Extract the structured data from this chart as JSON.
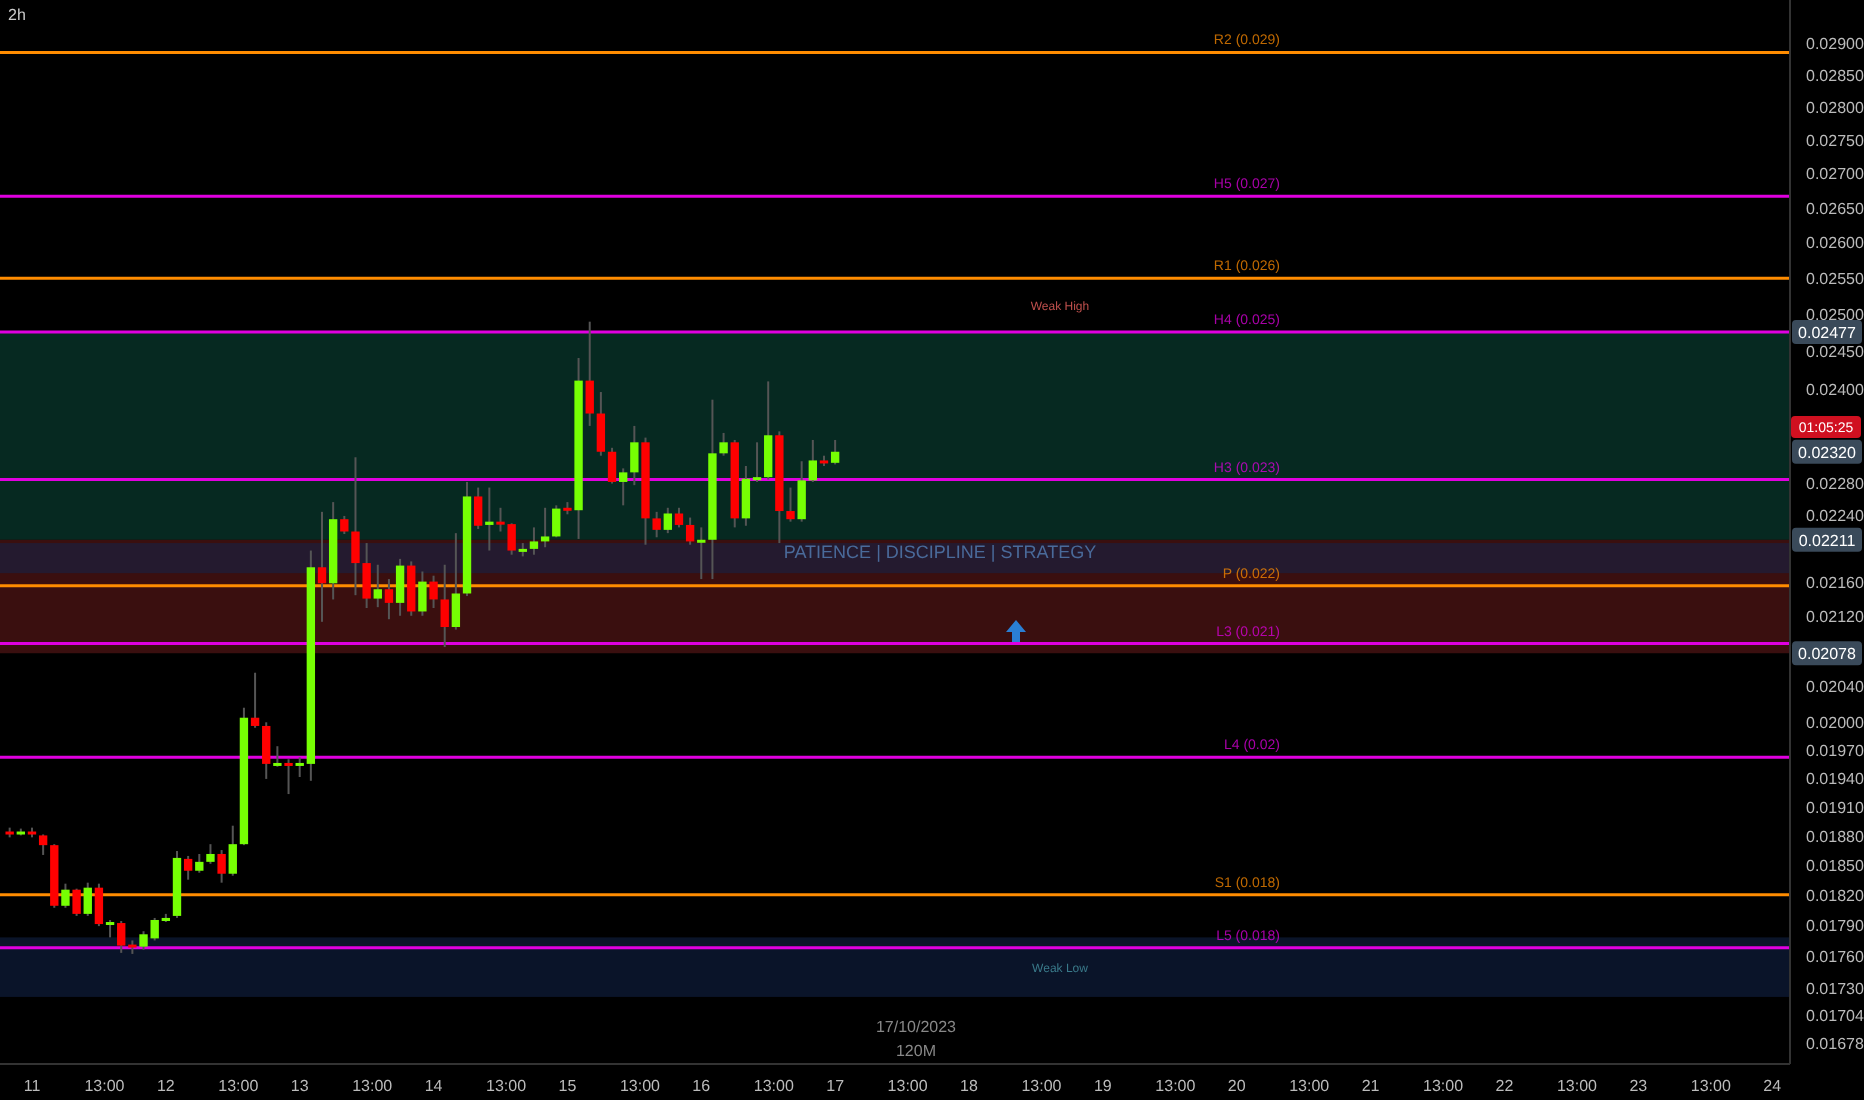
{
  "chart_data": {
    "type": "candlestick",
    "title": "2h",
    "x": [
      "2023-10-10T20:00",
      "2023-10-10T22:00",
      "2023-10-11T00:00",
      "2023-10-11T02:00",
      "2023-10-11T04:00",
      "2023-10-11T06:00",
      "2023-10-11T08:00",
      "2023-10-11T10:00",
      "2023-10-11T12:00",
      "2023-10-11T14:00",
      "2023-10-11T16:00",
      "2023-10-11T18:00",
      "2023-10-11T20:00",
      "2023-10-11T22:00",
      "2023-10-12T00:00",
      "2023-10-12T02:00",
      "2023-10-12T04:00",
      "2023-10-12T06:00",
      "2023-10-12T08:00",
      "2023-10-12T10:00",
      "2023-10-12T12:00",
      "2023-10-12T14:00",
      "2023-10-12T16:00",
      "2023-10-12T18:00",
      "2023-10-12T20:00",
      "2023-10-12T22:00",
      "2023-10-13T00:00",
      "2023-10-13T02:00",
      "2023-10-13T04:00",
      "2023-10-13T06:00",
      "2023-10-13T08:00",
      "2023-10-13T10:00",
      "2023-10-13T12:00",
      "2023-10-13T14:00",
      "2023-10-13T16:00",
      "2023-10-13T18:00",
      "2023-10-13T20:00",
      "2023-10-13T22:00",
      "2023-10-14T00:00",
      "2023-10-14T02:00",
      "2023-10-14T04:00",
      "2023-10-14T06:00",
      "2023-10-14T08:00",
      "2023-10-14T10:00",
      "2023-10-14T12:00",
      "2023-10-14T14:00",
      "2023-10-14T16:00",
      "2023-10-14T18:00",
      "2023-10-14T20:00",
      "2023-10-14T22:00",
      "2023-10-15T00:00",
      "2023-10-15T02:00",
      "2023-10-15T04:00",
      "2023-10-15T06:00",
      "2023-10-15T08:00",
      "2023-10-15T10:00",
      "2023-10-15T12:00",
      "2023-10-15T14:00",
      "2023-10-15T16:00",
      "2023-10-15T18:00",
      "2023-10-15T20:00",
      "2023-10-15T22:00",
      "2023-10-16T00:00",
      "2023-10-16T02:00",
      "2023-10-16T04:00",
      "2023-10-16T06:00",
      "2023-10-16T08:00",
      "2023-10-16T10:00",
      "2023-10-16T12:00",
      "2023-10-16T14:00",
      "2023-10-16T16:00",
      "2023-10-16T18:00",
      "2023-10-16T20:00",
      "2023-10-16T22:00",
      "2023-10-17T00:00"
    ],
    "ohlc": [
      [
        0.01885,
        0.01889,
        0.01879,
        0.01883
      ],
      [
        0.01883,
        0.01888,
        0.01881,
        0.01885
      ],
      [
        0.01885,
        0.01889,
        0.01879,
        0.01883
      ],
      [
        0.01881,
        0.01882,
        0.01861,
        0.01871
      ],
      [
        0.01871,
        0.01872,
        0.01808,
        0.0181
      ],
      [
        0.0181,
        0.01832,
        0.01808,
        0.01826
      ],
      [
        0.01826,
        0.01827,
        0.018,
        0.01802
      ],
      [
        0.01802,
        0.01833,
        0.018,
        0.01828
      ],
      [
        0.01828,
        0.01832,
        0.0179,
        0.01792
      ],
      [
        0.01792,
        0.01796,
        0.01779,
        0.01794
      ],
      [
        0.01793,
        0.01795,
        0.01764,
        0.01771
      ],
      [
        0.01772,
        0.01776,
        0.01763,
        0.0177
      ],
      [
        0.0177,
        0.01785,
        0.01767,
        0.01782
      ],
      [
        0.01778,
        0.01798,
        0.01776,
        0.01796
      ],
      [
        0.01795,
        0.01802,
        0.01794,
        0.01798
      ],
      [
        0.018,
        0.01865,
        0.01798,
        0.01858
      ],
      [
        0.01857,
        0.0186,
        0.01836,
        0.01845
      ],
      [
        0.01845,
        0.01862,
        0.01843,
        0.01854
      ],
      [
        0.01854,
        0.01872,
        0.01852,
        0.01862
      ],
      [
        0.01862,
        0.01866,
        0.01833,
        0.01842
      ],
      [
        0.01842,
        0.01891,
        0.0184,
        0.01872
      ],
      [
        0.01872,
        0.02017,
        0.01871,
        0.02006
      ],
      [
        0.02006,
        0.02056,
        0.01995,
        0.01997
      ],
      [
        0.01997,
        0.02001,
        0.0194,
        0.01956
      ],
      [
        0.01955,
        0.01975,
        0.01953,
        0.01957
      ],
      [
        0.01957,
        0.01961,
        0.01924,
        0.01955
      ],
      [
        0.01955,
        0.01963,
        0.01942,
        0.01957
      ],
      [
        0.01956,
        0.02198,
        0.01938,
        0.02178
      ],
      [
        0.02178,
        0.02245,
        0.02114,
        0.02159
      ],
      [
        0.02159,
        0.02257,
        0.0214,
        0.02236
      ],
      [
        0.02236,
        0.0224,
        0.02218,
        0.02221
      ],
      [
        0.02221,
        0.02313,
        0.02145,
        0.02183
      ],
      [
        0.02183,
        0.02207,
        0.0213,
        0.02141
      ],
      [
        0.02141,
        0.02181,
        0.02131,
        0.02152
      ],
      [
        0.02152,
        0.02164,
        0.02117,
        0.02136
      ],
      [
        0.02136,
        0.02188,
        0.02121,
        0.0218
      ],
      [
        0.0218,
        0.02185,
        0.02121,
        0.02126
      ],
      [
        0.02126,
        0.02173,
        0.02121,
        0.02161
      ],
      [
        0.02161,
        0.02168,
        0.0213,
        0.0214
      ],
      [
        0.0214,
        0.02181,
        0.02085,
        0.02108
      ],
      [
        0.02108,
        0.02219,
        0.02105,
        0.02147
      ],
      [
        0.02147,
        0.02282,
        0.02144,
        0.02264
      ],
      [
        0.02264,
        0.02275,
        0.02224,
        0.02228
      ],
      [
        0.02229,
        0.02275,
        0.02198,
        0.02233
      ],
      [
        0.02233,
        0.0225,
        0.02221,
        0.0223
      ],
      [
        0.0223,
        0.02231,
        0.02193,
        0.02198
      ],
      [
        0.02198,
        0.02207,
        0.02191,
        0.022
      ],
      [
        0.022,
        0.02226,
        0.02193,
        0.02209
      ],
      [
        0.02209,
        0.0225,
        0.02202,
        0.02215
      ],
      [
        0.02215,
        0.02253,
        0.02214,
        0.02249
      ],
      [
        0.0225,
        0.02257,
        0.02242,
        0.02247
      ],
      [
        0.02247,
        0.02442,
        0.02212,
        0.02412
      ],
      [
        0.02412,
        0.02491,
        0.02353,
        0.02369
      ],
      [
        0.02369,
        0.02397,
        0.02315,
        0.0232
      ],
      [
        0.0232,
        0.02325,
        0.0228,
        0.02282
      ],
      [
        0.02282,
        0.02299,
        0.02253,
        0.02294
      ],
      [
        0.02294,
        0.02353,
        0.02278,
        0.02332
      ],
      [
        0.02332,
        0.02338,
        0.02205,
        0.02237
      ],
      [
        0.02237,
        0.02245,
        0.02214,
        0.02223
      ],
      [
        0.02223,
        0.0225,
        0.02219,
        0.02243
      ],
      [
        0.02243,
        0.0225,
        0.02226,
        0.02229
      ],
      [
        0.02229,
        0.02238,
        0.02205,
        0.02209
      ],
      [
        0.02209,
        0.02226,
        0.02164,
        0.02211
      ],
      [
        0.02211,
        0.02387,
        0.02164,
        0.02318
      ],
      [
        0.02318,
        0.02344,
        0.02315,
        0.02332
      ],
      [
        0.02332,
        0.02335,
        0.02226,
        0.02237
      ],
      [
        0.02237,
        0.02302,
        0.02228,
        0.02286
      ],
      [
        0.02286,
        0.02332,
        0.02282,
        0.02288
      ],
      [
        0.02288,
        0.02411,
        0.02285,
        0.02341
      ],
      [
        0.02341,
        0.02346,
        0.02207,
        0.02246
      ],
      [
        0.02246,
        0.02275,
        0.02233,
        0.02236
      ],
      [
        0.02236,
        0.02308,
        0.02233,
        0.02284
      ],
      [
        0.02284,
        0.02335,
        0.02282,
        0.02309
      ],
      [
        0.02309,
        0.02315,
        0.02302,
        0.02306
      ],
      [
        0.02306,
        0.02335,
        0.02304,
        0.0232
      ]
    ],
    "colors": [
      "#ff0000",
      "#76ff03",
      "#ff0000",
      "#ff0000",
      "#ff0000",
      "#76ff03",
      "#ff0000",
      "#76ff03",
      "#ff0000",
      "#76ff03",
      "#ff0000",
      "#ff0000",
      "#76ff03",
      "#76ff03",
      "#76ff03",
      "#76ff03",
      "#ff0000",
      "#76ff03",
      "#76ff03",
      "#ff0000",
      "#76ff03",
      "#76ff03",
      "#ff0000",
      "#ff0000",
      "#76ff03",
      "#ff0000",
      "#76ff03",
      "#76ff03",
      "#ff0000",
      "#76ff03",
      "#ff0000",
      "#ff0000",
      "#ff0000",
      "#76ff03",
      "#ff0000",
      "#76ff03",
      "#ff0000",
      "#76ff03",
      "#ff0000",
      "#ff0000",
      "#76ff03",
      "#76ff03",
      "#ff0000",
      "#76ff03",
      "#ff0000",
      "#ff0000",
      "#76ff03",
      "#76ff03",
      "#76ff03",
      "#76ff03",
      "#ff0000",
      "#76ff03",
      "#ff0000",
      "#ff0000",
      "#ff0000",
      "#76ff03",
      "#76ff03",
      "#ff0000",
      "#ff0000",
      "#76ff03",
      "#ff0000",
      "#ff0000",
      "#76ff03",
      "#76ff03",
      "#76ff03",
      "#ff0000",
      "#76ff03",
      "#76ff03",
      "#76ff03",
      "#ff0000",
      "#ff0000",
      "#76ff03",
      "#76ff03",
      "#ff0000",
      "#76ff03"
    ],
    "log": true,
    "xlim": [
      "2023-10-10T18:16",
      "2023-10-24T03:12"
    ],
    "xticks": [
      {
        "value": "2023-10-11T00:00",
        "label": "11"
      },
      {
        "value": "2023-10-11T13:00",
        "label": "13:00"
      },
      {
        "value": "2023-10-12T00:00",
        "label": "12"
      },
      {
        "value": "2023-10-12T13:00",
        "label": "13:00"
      },
      {
        "value": "2023-10-13T00:00",
        "label": "13"
      },
      {
        "value": "2023-10-13T13:00",
        "label": "13:00"
      },
      {
        "value": "2023-10-14T00:00",
        "label": "14"
      },
      {
        "value": "2023-10-14T13:00",
        "label": "13:00"
      },
      {
        "value": "2023-10-15T00:00",
        "label": "15"
      },
      {
        "value": "2023-10-15T13:00",
        "label": "13:00"
      },
      {
        "value": "2023-10-16T00:00",
        "label": "16"
      },
      {
        "value": "2023-10-16T13:00",
        "label": "13:00"
      },
      {
        "value": "2023-10-17T00:00",
        "label": "17"
      },
      {
        "value": "2023-10-17T13:00",
        "label": "13:00"
      },
      {
        "value": "2023-10-18T00:00",
        "label": "18"
      },
      {
        "value": "2023-10-18T13:00",
        "label": "13:00"
      },
      {
        "value": "2023-10-19T00:00",
        "label": "19"
      },
      {
        "value": "2023-10-19T13:00",
        "label": "13:00"
      },
      {
        "value": "2023-10-20T00:00",
        "label": "20"
      },
      {
        "value": "2023-10-20T13:00",
        "label": "13:00"
      },
      {
        "value": "2023-10-21T00:00",
        "label": "21"
      },
      {
        "value": "2023-10-21T13:00",
        "label": "13:00"
      },
      {
        "value": "2023-10-22T00:00",
        "label": "22"
      },
      {
        "value": "2023-10-22T13:00",
        "label": "13:00"
      },
      {
        "value": "2023-10-23T00:00",
        "label": "23"
      },
      {
        "value": "2023-10-23T13:00",
        "label": "13:00"
      },
      {
        "value": "2023-10-24T00:00",
        "label": "24"
      }
    ],
    "ylim": [
      0.0166,
      0.0297
    ],
    "yticks": [
      {
        "value": 0.029,
        "label": "0.02900"
      },
      {
        "value": 0.0285,
        "label": "0.02850"
      },
      {
        "value": 0.028,
        "label": "0.02800"
      },
      {
        "value": 0.0275,
        "label": "0.02750"
      },
      {
        "value": 0.027,
        "label": "0.02700"
      },
      {
        "value": 0.0265,
        "label": "0.02650"
      },
      {
        "value": 0.026,
        "label": "0.02600"
      },
      {
        "value": 0.0255,
        "label": "0.02550"
      },
      {
        "value": 0.025,
        "label": "0.02500"
      },
      {
        "value": 0.0245,
        "label": "0.02450"
      },
      {
        "value": 0.024,
        "label": "0.02400"
      },
      {
        "value": 0.0228,
        "label": "0.02280"
      },
      {
        "value": 0.0224,
        "label": "0.02240"
      },
      {
        "value": 0.0216,
        "label": "0.02160"
      },
      {
        "value": 0.0212,
        "label": "0.02120"
      },
      {
        "value": 0.0204,
        "label": "0.02040"
      },
      {
        "value": 0.02,
        "label": "0.02000"
      },
      {
        "value": 0.0197,
        "label": "0.01970"
      },
      {
        "value": 0.0194,
        "label": "0.01940"
      },
      {
        "value": 0.0191,
        "label": "0.01910"
      },
      {
        "value": 0.0188,
        "label": "0.01880"
      },
      {
        "value": 0.0185,
        "label": "0.01850"
      },
      {
        "value": 0.0182,
        "label": "0.01820"
      },
      {
        "value": 0.0179,
        "label": "0.01790"
      },
      {
        "value": 0.0176,
        "label": "0.01760"
      },
      {
        "value": 0.0173,
        "label": "0.01730"
      },
      {
        "value": 0.01704,
        "label": "0.01704"
      },
      {
        "value": 0.01678,
        "label": "0.01678"
      }
    ],
    "ref_lines": [
      {
        "axis": "y",
        "value": 0.02886,
        "label": "R2 (0.029)",
        "color": "#ff8c00"
      },
      {
        "axis": "y",
        "value": 0.02668,
        "label": "H5 (0.027)",
        "color": "#e000e0"
      },
      {
        "axis": "y",
        "value": 0.02551,
        "label": "R1 (0.026)",
        "color": "#ff8c00"
      },
      {
        "axis": "y",
        "value": 0.02477,
        "label": "H4 (0.025)",
        "color": "#e000e0"
      },
      {
        "axis": "y",
        "value": 0.02285,
        "label": "H3 (0.023)",
        "color": "#e000e0"
      },
      {
        "axis": "y",
        "value": 0.02156,
        "label": "P (0.022)",
        "color": "#ff8c00"
      },
      {
        "axis": "y",
        "value": 0.02089,
        "label": "L3 (0.021)",
        "color": "#e000e0"
      },
      {
        "axis": "y",
        "value": 0.01963,
        "label": "L4 (0.02)",
        "color": "#e000e0"
      },
      {
        "axis": "y",
        "value": 0.01821,
        "label": "S1 (0.018)",
        "color": "#ff8c00"
      },
      {
        "axis": "y",
        "value": 0.01769,
        "label": "L5 (0.018)",
        "color": "#e000e0"
      }
    ],
    "bands": [
      {
        "axis": "y",
        "from": 0.02211,
        "to": 0.02477,
        "color": "#0b4a3c"
      },
      {
        "axis": "y",
        "from": 0.02078,
        "to": 0.02211,
        "color": "#6a1c1c"
      },
      {
        "axis": "y",
        "from": 0.02171,
        "to": 0.02207,
        "color": "#13254a"
      },
      {
        "axis": "y",
        "from": 0.01722,
        "to": 0.01779,
        "color": "#13254a"
      }
    ],
    "annotations": [
      "17/10/2023",
      "120M",
      "PATIENCE | DISCIPLINE | STRATEGY",
      "01:05:25",
      "Weak High",
      "Weak Low",
      {
        "text": "0.02477",
        "y": 0.02477
      },
      {
        "text": "0.02320",
        "y": 0.0232
      },
      {
        "text": "0.02211",
        "y": 0.02211
      },
      {
        "text": "0.02078",
        "y": 0.02078
      }
    ],
    "grid": false
  }
}
